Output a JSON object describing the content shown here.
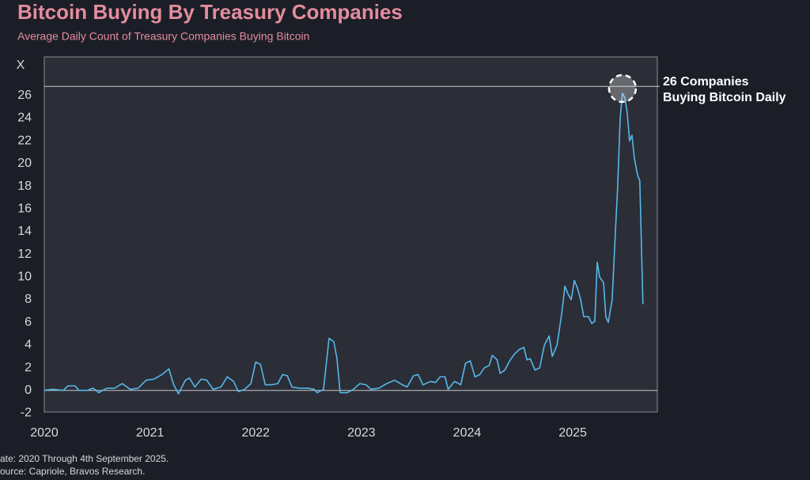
{
  "chart_data": {
    "type": "line",
    "title": "Bitcoin Buying By Treasury Companies",
    "subtitle": "Average Daily Count of Treasury Companies Buying Bitcoin",
    "y_label": "X",
    "annotation": [
      "26 Companies",
      "Buying Bitcoin Daily"
    ],
    "reference_line": 26.8,
    "footer": [
      "ate: 2020 Through 4th September 2025.",
      "ource: Capriole, Bravos Research."
    ],
    "xlim": [
      2020,
      2025.8
    ],
    "xticks": [
      2020,
      2021,
      2022,
      2023,
      2024,
      2025
    ],
    "ylim": [
      -1.9,
      29.4
    ],
    "yticks": [
      -2,
      0,
      2,
      4,
      6,
      8,
      10,
      12,
      14,
      16,
      18,
      20,
      22,
      24,
      26
    ],
    "series": [
      {
        "color": "#56b8ea",
        "x": [
          2020.0,
          2020.075,
          2020.179,
          2020.224,
          2020.291,
          2020.328,
          2020.403,
          2020.463,
          2020.515,
          2020.59,
          2020.664,
          2020.739,
          2020.813,
          2020.888,
          2020.963,
          2021.037,
          2021.112,
          2021.179,
          2021.224,
          2021.269,
          2021.336,
          2021.373,
          2021.425,
          2021.485,
          2021.537,
          2021.597,
          2021.672,
          2021.731,
          2021.791,
          2021.836,
          2021.896,
          2021.955,
          2022.0,
          2022.045,
          2022.09,
          2022.149,
          2022.209,
          2022.254,
          2022.299,
          2022.343,
          2022.418,
          2022.493,
          2022.552,
          2022.582,
          2022.642,
          2022.694,
          2022.739,
          2022.769,
          2022.799,
          2022.866,
          2022.925,
          2022.985,
          2023.045,
          2023.09,
          2023.164,
          2023.239,
          2023.313,
          2023.388,
          2023.433,
          2023.493,
          2023.537,
          2023.582,
          2023.657,
          2023.701,
          2023.746,
          2023.791,
          2023.821,
          2023.881,
          2023.94,
          2023.985,
          2024.03,
          2024.075,
          2024.119,
          2024.164,
          2024.209,
          2024.239,
          2024.284,
          2024.313,
          2024.358,
          2024.403,
          2024.448,
          2024.493,
          2024.537,
          2024.567,
          2024.597,
          2024.642,
          2024.687,
          2024.731,
          2024.776,
          2024.806,
          2024.851,
          2024.896,
          2024.925,
          2024.955,
          2024.985,
          2025.015,
          2025.045,
          2025.075,
          2025.104,
          2025.149,
          2025.179,
          2025.209,
          2025.231,
          2025.254,
          2025.291,
          2025.313,
          2025.336,
          2025.373,
          2025.403,
          2025.425,
          2025.448,
          2025.47,
          2025.493,
          2025.515,
          2025.537,
          2025.56,
          2025.582,
          2025.612,
          2025.634,
          2025.664
        ],
        "values": [
          0,
          0.1,
          0,
          0.4,
          0.4,
          0,
          0,
          0.2,
          -0.2,
          0.2,
          0.2,
          0.6,
          0.1,
          0.2,
          0.9,
          1.0,
          1.4,
          1.9,
          0.5,
          -0.3,
          0.9,
          1.1,
          0.3,
          1.0,
          0.9,
          0.1,
          0.3,
          1.2,
          0.8,
          -0.1,
          0.1,
          0.6,
          2.5,
          2.3,
          0.5,
          0.5,
          0.6,
          1.4,
          1.3,
          0.3,
          0.2,
          0.2,
          0.1,
          -0.2,
          0.1,
          4.6,
          4.3,
          2.8,
          -0.2,
          -0.2,
          0.1,
          0.6,
          0.5,
          0.1,
          0.2,
          0.6,
          0.9,
          0.5,
          0.3,
          1.3,
          1.4,
          0.5,
          0.8,
          0.7,
          1.2,
          1.2,
          0.1,
          0.8,
          0.5,
          2.4,
          2.6,
          1.2,
          1.4,
          2.0,
          2.2,
          3.1,
          2.7,
          1.5,
          1.8,
          2.6,
          3.2,
          3.6,
          3.8,
          2.7,
          2.8,
          1.8,
          2.0,
          4.0,
          4.8,
          3.0,
          4.0,
          6.8,
          9.2,
          8.5,
          8.0,
          9.7,
          9.0,
          8.0,
          6.5,
          6.5,
          5.9,
          6.1,
          11.3,
          10.0,
          9.5,
          6.5,
          6.0,
          8.0,
          14.0,
          18.0,
          24.0,
          26.2,
          25.8,
          24.5,
          22.0,
          22.5,
          20.5,
          19.0,
          18.5,
          7.6
        ]
      }
    ]
  }
}
